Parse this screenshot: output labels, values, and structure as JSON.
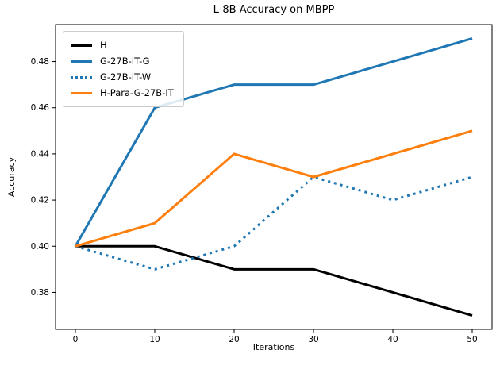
{
  "chart_data": {
    "type": "line",
    "title": "L-8B Accuracy on MBPP",
    "xlabel": "Iterations",
    "ylabel": "Accuracy",
    "x": [
      0,
      10,
      20,
      30,
      40,
      50
    ],
    "xlim": [
      -2.5,
      52.5
    ],
    "ylim": [
      0.364,
      0.496
    ],
    "grid": false,
    "legend_position": "upper left",
    "axis_color": "#000000",
    "background_color": "#ffffff",
    "xticks": {
      "values": [
        0,
        10,
        20,
        30,
        40,
        50
      ],
      "labels": [
        "0",
        "10",
        "20",
        "30",
        "40",
        "50"
      ]
    },
    "yticks": {
      "values": [
        0.38,
        0.4,
        0.42,
        0.44,
        0.46,
        0.48
      ],
      "labels": [
        "0.38",
        "0.40",
        "0.42",
        "0.44",
        "0.46",
        "0.48"
      ]
    },
    "series": [
      {
        "name": "H",
        "color": "#000000",
        "line_style": "solid",
        "values": [
          0.4,
          0.4,
          0.39,
          0.39,
          0.38,
          0.37
        ]
      },
      {
        "name": "G-27B-IT-G",
        "color": "#1f77b4",
        "line_style": "solid",
        "values": [
          0.4,
          0.46,
          0.47,
          0.47,
          0.48,
          0.49
        ]
      },
      {
        "name": "G-27B-IT-W",
        "color": "#1f77b4",
        "line_style": "dotted",
        "values": [
          0.4,
          0.39,
          0.4,
          0.43,
          0.42,
          0.43
        ]
      },
      {
        "name": "H-Para-G-27B-IT",
        "color": "#ff7f0e",
        "line_style": "solid",
        "values": [
          0.4,
          0.41,
          0.44,
          0.43,
          0.44,
          0.45
        ]
      }
    ]
  }
}
